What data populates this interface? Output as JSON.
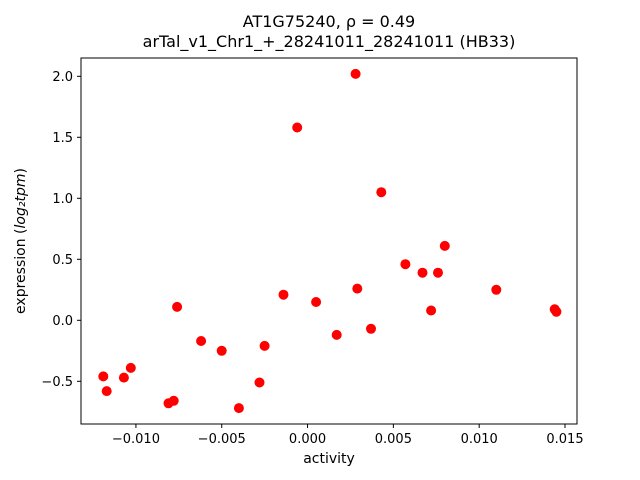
{
  "title": {
    "line1": "AT1G75240, ρ = 0.49",
    "line2": "arTal_v1_Chr1_+_28241011_28241011 (HB33)"
  },
  "axes": {
    "xlabel": "activity",
    "ylabel_prefix": "expression (",
    "ylabel_math": "log₂tpm",
    "ylabel_suffix": ")"
  },
  "chart_data": {
    "type": "scatter",
    "title": "AT1G75240, ρ = 0.49",
    "subtitle": "arTal_v1_Chr1_+_28241011_28241011 (HB33)",
    "correlation_rho": 0.49,
    "xlabel": "activity",
    "ylabel": "expression (log₂tpm)",
    "xlim": [
      -0.0132,
      0.0157
    ],
    "ylim": [
      -0.85,
      2.15
    ],
    "grid": false,
    "legend_position": "none",
    "background_color": "#ffffff",
    "axis_color": "#000000",
    "marker": {
      "shape": "circle",
      "color": "#ff0000",
      "radius_px": 5
    },
    "xticks": {
      "values": [
        -0.01,
        -0.005,
        0.0,
        0.005,
        0.01,
        0.015
      ],
      "labels": [
        "−0.010",
        "−0.005",
        "0.000",
        "0.005",
        "0.010",
        "0.015"
      ]
    },
    "yticks": {
      "values": [
        -0.5,
        0.0,
        0.5,
        1.0,
        1.5,
        2.0
      ],
      "labels": [
        "−0.5",
        "0.0",
        "0.5",
        "1.0",
        "1.5",
        "2.0"
      ]
    },
    "points": [
      [
        -0.0119,
        -0.46
      ],
      [
        -0.0117,
        -0.58
      ],
      [
        -0.0107,
        -0.47
      ],
      [
        -0.0103,
        -0.39
      ],
      [
        -0.0081,
        -0.68
      ],
      [
        -0.0078,
        -0.66
      ],
      [
        -0.0076,
        0.11
      ],
      [
        -0.0062,
        -0.17
      ],
      [
        -0.005,
        -0.25
      ],
      [
        -0.004,
        -0.72
      ],
      [
        -0.0028,
        -0.51
      ],
      [
        -0.0025,
        -0.21
      ],
      [
        -0.0014,
        0.21
      ],
      [
        -0.0006,
        1.58
      ],
      [
        0.0005,
        0.15
      ],
      [
        0.0017,
        -0.12
      ],
      [
        0.0028,
        2.02
      ],
      [
        0.0029,
        0.26
      ],
      [
        0.0037,
        -0.07
      ],
      [
        0.0043,
        1.05
      ],
      [
        0.0057,
        0.46
      ],
      [
        0.0067,
        0.39
      ],
      [
        0.0072,
        0.08
      ],
      [
        0.0076,
        0.39
      ],
      [
        0.008,
        0.61
      ],
      [
        0.011,
        0.25
      ],
      [
        0.0144,
        0.09
      ],
      [
        0.0145,
        0.07
      ]
    ]
  }
}
